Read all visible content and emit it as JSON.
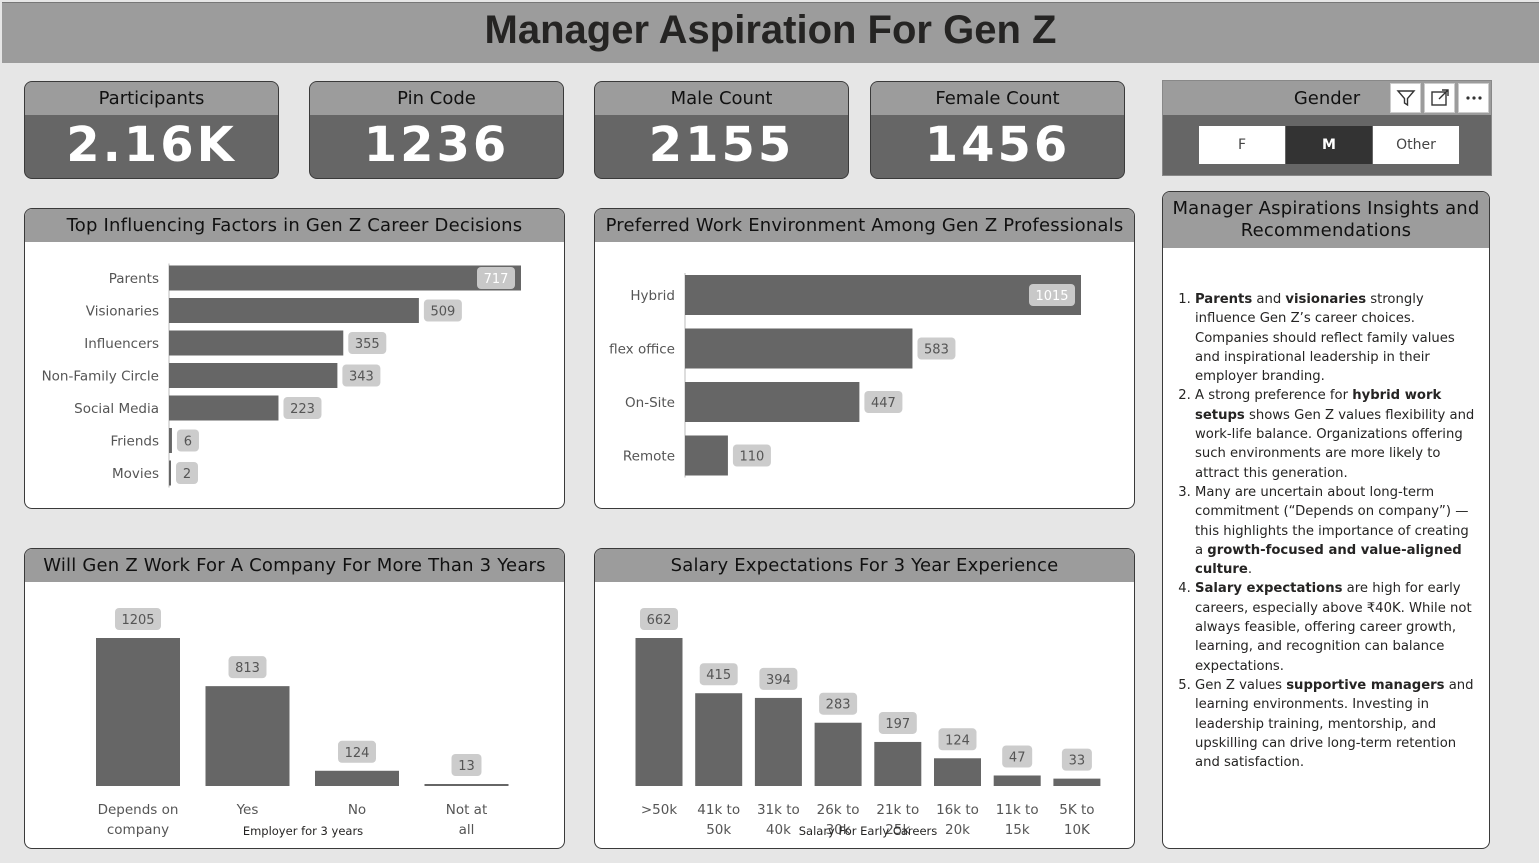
{
  "page": {
    "title": "Manager Aspiration For Gen Z"
  },
  "cards": [
    {
      "label": "Participants",
      "value": "2.16K"
    },
    {
      "label": "Pin Code",
      "value": "1236"
    },
    {
      "label": "Male Count",
      "value": "2155"
    },
    {
      "label": "Female Count",
      "value": "1456"
    }
  ],
  "slicer": {
    "title": "Gender",
    "options": [
      "F",
      "M",
      "Other"
    ],
    "selected": "M",
    "icons": [
      "filter-icon",
      "expand-icon",
      "more-options-icon"
    ]
  },
  "chart_data": [
    {
      "id": "influence",
      "type": "bar",
      "orientation": "horizontal",
      "title": "Top Influencing Factors in Gen Z Career Decisions",
      "categories": [
        "Parents",
        "Visionaries",
        "Influencers",
        "Non-Family Circle",
        "Social Media",
        "Friends",
        "Movies"
      ],
      "values": [
        717,
        509,
        355,
        343,
        223,
        6,
        2
      ],
      "xlim": [
        0,
        717
      ]
    },
    {
      "id": "environment",
      "type": "bar",
      "orientation": "horizontal",
      "title": "Preferred Work Environment Among Gen Z Professionals",
      "categories": [
        "Hybrid",
        "flex office",
        "On-Site",
        "Remote"
      ],
      "values": [
        1015,
        583,
        447,
        110
      ],
      "xlim": [
        0,
        1015
      ]
    },
    {
      "id": "tenure",
      "type": "bar",
      "orientation": "vertical",
      "title": "Will Gen Z Work For A Company For More Than 3 Years",
      "categories": [
        "Depends on company",
        "Yes",
        "No",
        "Not at all"
      ],
      "values": [
        1205,
        813,
        124,
        13
      ],
      "xlabel": "Employer for 3 years",
      "ylim": [
        0,
        1205
      ]
    },
    {
      "id": "salary",
      "type": "bar",
      "orientation": "vertical",
      "title": "Salary Expectations For 3 Year Experience",
      "categories": [
        ">50k",
        "41k to 50k",
        "31k to 40k",
        "26k to 30k",
        "21k to 25k",
        "16k to 20k",
        "11k to 15k",
        "5K to 10K"
      ],
      "values": [
        662,
        415,
        394,
        283,
        197,
        124,
        47,
        33
      ],
      "xlabel": "Salary For Early Careers",
      "ylim": [
        0,
        662
      ]
    }
  ],
  "colors": {
    "bar": "#666666",
    "label_bg": "#cccccc",
    "header_bg": "#9c9c9c",
    "page_bg": "#e6e6e6",
    "selected": "#333333"
  },
  "insights": {
    "title": "Manager Aspirations Insights and Recommendations",
    "items": [
      [
        {
          "b": true,
          "t": "Parents"
        },
        {
          "b": false,
          "t": " and "
        },
        {
          "b": true,
          "t": "visionaries"
        },
        {
          "b": false,
          "t": " strongly influence Gen Z’s career choices. Companies should reflect family values and inspirational leadership in their employer branding."
        }
      ],
      [
        {
          "b": false,
          "t": "A strong preference for "
        },
        {
          "b": true,
          "t": "hybrid work setups"
        },
        {
          "b": false,
          "t": " shows Gen Z values flexibility and work-life balance. Organizations offering such environments are more likely to attract this generation."
        }
      ],
      [
        {
          "b": false,
          "t": "Many are uncertain about long-term commitment (“Depends on company”) — this highlights the importance of creating a "
        },
        {
          "b": true,
          "t": "growth-focused and value-aligned culture"
        },
        {
          "b": false,
          "t": "."
        }
      ],
      [
        {
          "b": true,
          "t": "Salary expectations"
        },
        {
          "b": false,
          "t": " are high for early careers, especially above ₹40K. While not always feasible, offering career growth, learning, and recognition can balance expectations."
        }
      ],
      [
        {
          "b": false,
          "t": "Gen Z values "
        },
        {
          "b": true,
          "t": "supportive managers"
        },
        {
          "b": false,
          "t": " and learning environments. Investing in leadership training, mentorship, and upskilling can drive long-term retention and satisfaction."
        }
      ]
    ]
  }
}
